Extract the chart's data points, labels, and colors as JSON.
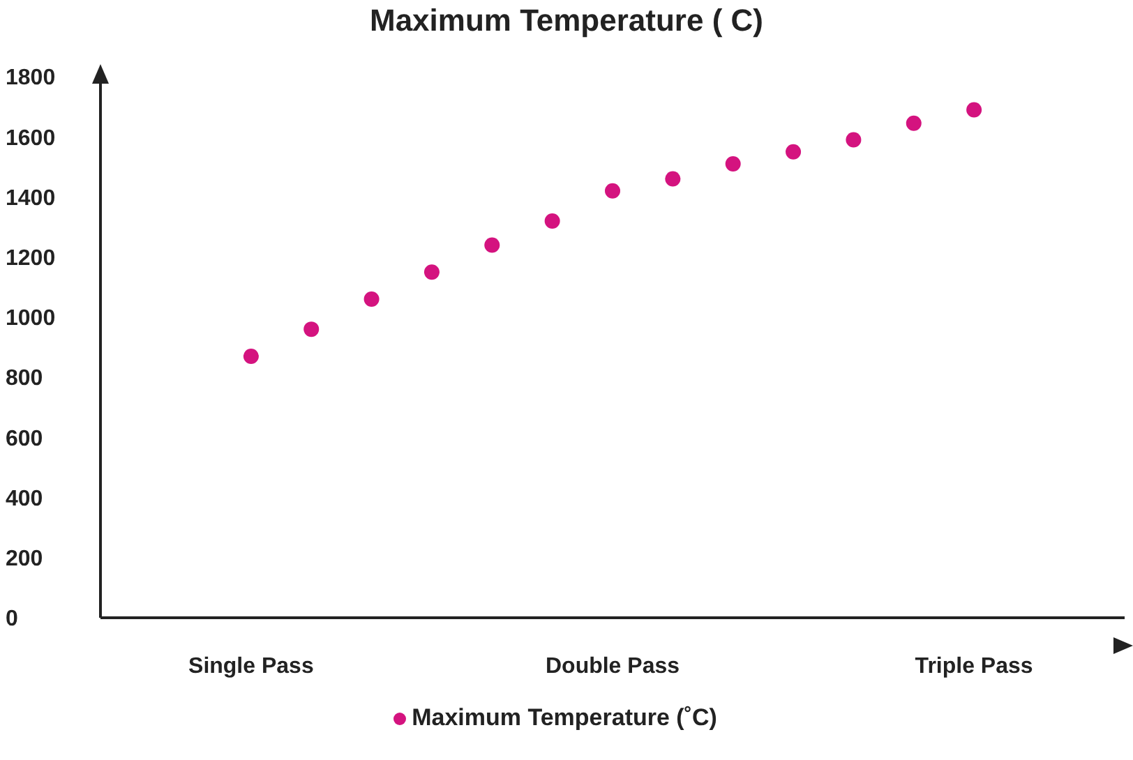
{
  "chart_data": {
    "type": "scatter",
    "title": "Maximum Temperature ( C)",
    "categories": [
      null,
      null,
      "Single Pass",
      null,
      null,
      null,
      null,
      null,
      "Double Pass",
      null,
      null,
      null,
      null,
      null,
      "Triple Pass",
      null,
      null
    ],
    "series": [
      {
        "name": "Maximum Temperature (˚C)",
        "color": "#d4137f",
        "values": [
          null,
          null,
          870,
          960,
          1060,
          1150,
          1240,
          1320,
          1420,
          1460,
          1510,
          1550,
          1590,
          1645,
          1690,
          null,
          null
        ]
      }
    ],
    "ylim": [
      0,
      1800
    ],
    "yticks": [
      0,
      200,
      400,
      600,
      800,
      1000,
      1200,
      1400,
      1600,
      1800
    ],
    "grid": false,
    "legend": "bottom",
    "marker": "circle"
  }
}
